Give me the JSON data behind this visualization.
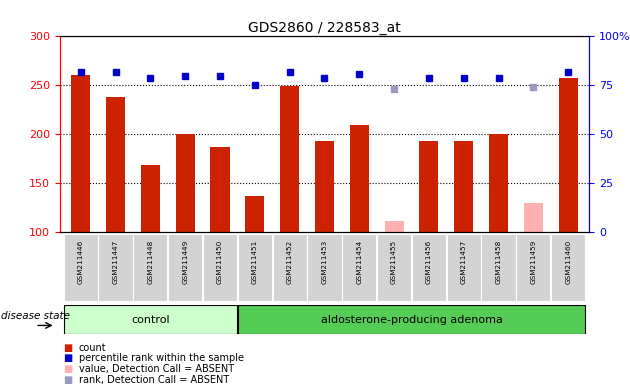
{
  "title": "GDS2860 / 228583_at",
  "samples": [
    "GSM211446",
    "GSM211447",
    "GSM211448",
    "GSM211449",
    "GSM211450",
    "GSM211451",
    "GSM211452",
    "GSM211453",
    "GSM211454",
    "GSM211455",
    "GSM211456",
    "GSM211457",
    "GSM211458",
    "GSM211459",
    "GSM211460"
  ],
  "counts": [
    261,
    238,
    169,
    200,
    187,
    137,
    249,
    193,
    210,
    null,
    193,
    193,
    200,
    null,
    258
  ],
  "counts_absent": [
    null,
    null,
    null,
    null,
    null,
    null,
    null,
    null,
    null,
    112,
    null,
    null,
    null,
    130,
    null
  ],
  "ranks": [
    82,
    82,
    79,
    80,
    80,
    75,
    82,
    79,
    81,
    null,
    79,
    79,
    79,
    null,
    82
  ],
  "ranks_absent": [
    null,
    null,
    null,
    null,
    null,
    null,
    null,
    null,
    null,
    73,
    null,
    null,
    null,
    74,
    null
  ],
  "ylim_left": [
    100,
    300
  ],
  "ylim_right": [
    0,
    100
  ],
  "yticks_left": [
    100,
    150,
    200,
    250,
    300
  ],
  "yticks_right": [
    0,
    25,
    50,
    75,
    100
  ],
  "ytick_labels_right": [
    "0",
    "25",
    "50",
    "75",
    "100%"
  ],
  "bar_color": "#cc2200",
  "bar_absent_color": "#ffb0b0",
  "rank_color": "#0000cc",
  "rank_absent_color": "#9999bb",
  "control_indices": [
    0,
    1,
    2,
    3,
    4
  ],
  "adenoma_indices": [
    5,
    6,
    7,
    8,
    9,
    10,
    11,
    12,
    13,
    14
  ],
  "control_label": "control",
  "adenoma_label": "aldosterone-producing adenoma",
  "control_bg": "#ccffcc",
  "adenoma_bg": "#55cc55",
  "disease_state_label": "disease state",
  "group_box_color": "#d3d3d3",
  "legend_items": [
    "count",
    "percentile rank within the sample",
    "value, Detection Call = ABSENT",
    "rank, Detection Call = ABSENT"
  ],
  "legend_colors": [
    "#cc2200",
    "#0000cc",
    "#ffb0b0",
    "#9999bb"
  ]
}
